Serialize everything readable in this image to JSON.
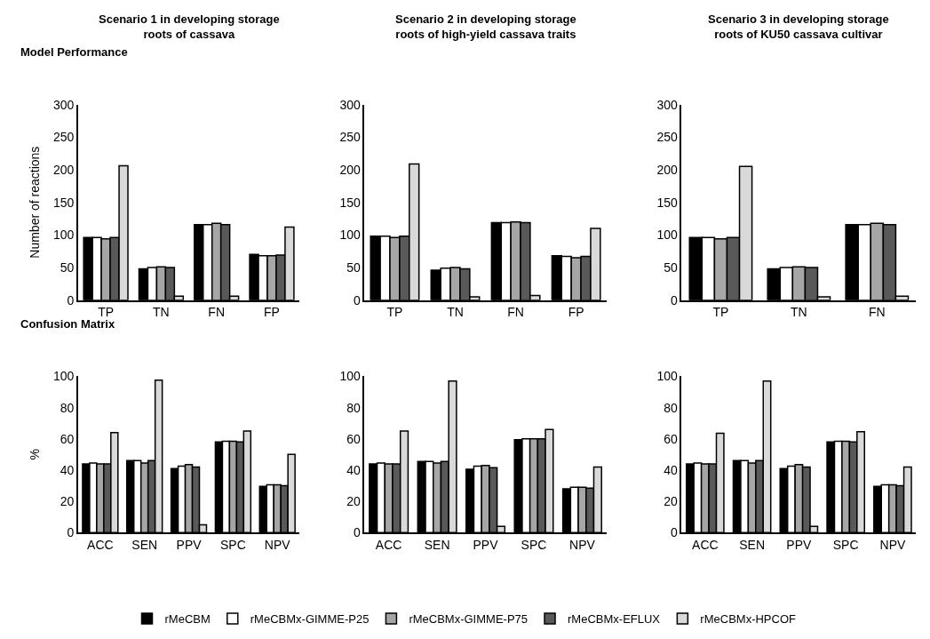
{
  "chart_data": [
    {
      "type": "bar",
      "title": "Scenario 1 in developing storage\nroots of cassava",
      "subtitle": "Model Performance",
      "ylabel": "Number of reactions",
      "categories": [
        "TP",
        "TN",
        "FN",
        "FP"
      ],
      "ylim": [
        0,
        300
      ],
      "yticks": [
        0,
        50,
        100,
        150,
        200,
        250,
        300
      ],
      "series": [
        {
          "color": "#000000",
          "values": [
            96,
            48,
            116,
            70
          ]
        },
        {
          "color": "#ffffff",
          "values": [
            96,
            50,
            116,
            68
          ]
        },
        {
          "color": "#a6a6a6",
          "values": [
            94,
            51,
            118,
            68
          ]
        },
        {
          "color": "#595959",
          "values": [
            96,
            50,
            116,
            69
          ]
        },
        {
          "color": "#d9d9d9",
          "values": [
            206,
            6,
            6,
            112
          ]
        }
      ]
    },
    {
      "type": "bar",
      "title": "Scenario 2 in developing storage\nroots of high-yield cassava traits",
      "categories": [
        "TP",
        "TN",
        "FN",
        "FP"
      ],
      "ylim": [
        0,
        300
      ],
      "yticks": [
        0,
        50,
        100,
        150,
        200,
        250,
        300
      ],
      "series": [
        {
          "color": "#000000",
          "values": [
            98,
            46,
            119,
            68
          ]
        },
        {
          "color": "#ffffff",
          "values": [
            98,
            49,
            119,
            67
          ]
        },
        {
          "color": "#a6a6a6",
          "values": [
            96,
            50,
            120,
            65
          ]
        },
        {
          "color": "#595959",
          "values": [
            98,
            48,
            119,
            67
          ]
        },
        {
          "color": "#d9d9d9",
          "values": [
            209,
            5,
            7,
            110
          ]
        }
      ]
    },
    {
      "type": "bar",
      "title": "Scenario 3 in developing storage\nroots of KU50 cassava cultivar",
      "categories": [
        "TP",
        "TN",
        "FN"
      ],
      "ylim": [
        0,
        300
      ],
      "yticks": [
        0,
        50,
        100,
        150,
        200,
        250,
        300
      ],
      "series": [
        {
          "color": "#000000",
          "values": [
            96,
            48,
            116
          ]
        },
        {
          "color": "#ffffff",
          "values": [
            96,
            50,
            116
          ]
        },
        {
          "color": "#a6a6a6",
          "values": [
            94,
            51,
            118
          ]
        },
        {
          "color": "#595959",
          "values": [
            96,
            50,
            116
          ]
        },
        {
          "color": "#d9d9d9",
          "values": [
            205,
            5,
            6
          ]
        }
      ]
    },
    {
      "type": "bar",
      "subtitle": "Confusion Matrix",
      "ylabel": "%",
      "legend": "bottom",
      "categories": [
        "ACC",
        "SEN",
        "PPV",
        "SPC",
        "NPV"
      ],
      "ylim": [
        0,
        100
      ],
      "yticks": [
        0,
        20,
        40,
        60,
        80,
        100
      ],
      "series": [
        {
          "name": "rMeCBM",
          "color": "#000000",
          "values": [
            44,
            46,
            41,
            58,
            29.5
          ]
        },
        {
          "name": "rMeCBMx-GIMME-P25",
          "color": "#ffffff",
          "values": [
            44.5,
            46,
            42.5,
            58.5,
            30.5
          ]
        },
        {
          "name": "rMeCBMx-GIMME-P75",
          "color": "#a6a6a6",
          "values": [
            44,
            44.5,
            43.5,
            58.5,
            30.5
          ]
        },
        {
          "name": "rMeCBMx-EFLUX",
          "color": "#595959",
          "values": [
            44,
            46,
            42,
            58,
            30
          ]
        },
        {
          "name": "rMeCBMx-HPCOF",
          "color": "#d9d9d9",
          "values": [
            64,
            97.5,
            5,
            65,
            50
          ]
        }
      ]
    },
    {
      "type": "bar",
      "categories": [
        "ACC",
        "SEN",
        "PPV",
        "SPC",
        "NPV"
      ],
      "ylim": [
        0,
        100
      ],
      "yticks": [
        0,
        20,
        40,
        60,
        80,
        100
      ],
      "series": [
        {
          "color": "#000000",
          "values": [
            44,
            45.5,
            40.5,
            59.5,
            28
          ]
        },
        {
          "color": "#ffffff",
          "values": [
            44.5,
            45.5,
            42.5,
            60,
            29
          ]
        },
        {
          "color": "#a6a6a6",
          "values": [
            44,
            44.5,
            43,
            60,
            29
          ]
        },
        {
          "color": "#595959",
          "values": [
            44,
            45.5,
            41.5,
            60,
            28.5
          ]
        },
        {
          "color": "#d9d9d9",
          "values": [
            65,
            97,
            4,
            66,
            42
          ]
        }
      ]
    },
    {
      "type": "bar",
      "categories": [
        "ACC",
        "SEN",
        "PPV",
        "SPC",
        "NPV"
      ],
      "ylim": [
        0,
        100
      ],
      "yticks": [
        0,
        20,
        40,
        60,
        80,
        100
      ],
      "series": [
        {
          "color": "#000000",
          "values": [
            44,
            46,
            41,
            58,
            29.5
          ]
        },
        {
          "color": "#ffffff",
          "values": [
            44.5,
            46,
            42.5,
            58.5,
            30.5
          ]
        },
        {
          "color": "#a6a6a6",
          "values": [
            44,
            44.5,
            43.5,
            58.5,
            30.5
          ]
        },
        {
          "color": "#595959",
          "values": [
            44,
            46,
            42,
            58,
            30
          ]
        },
        {
          "color": "#d9d9d9",
          "values": [
            63.5,
            97,
            4,
            64.5,
            42
          ]
        }
      ]
    }
  ]
}
